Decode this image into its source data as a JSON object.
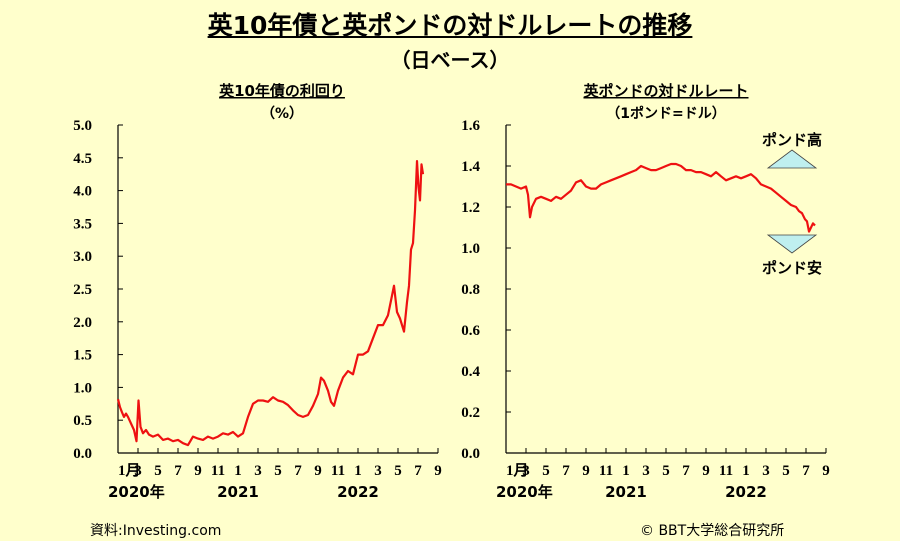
{
  "page": {
    "title": "英10年債と英ポンドの対ドルレートの推移",
    "subtitle": "（日ベース）",
    "source": "資料:Investing.com",
    "copyright": "© BBT大学総合研究所"
  },
  "colors": {
    "line": "#EE1111",
    "background": "#FFFFCC",
    "arrow_fill": "#BFEFEF"
  },
  "chart_data": [
    {
      "type": "line",
      "title": "英10年債の利回り",
      "unit": "（%）",
      "ylim": [
        0,
        5.0
      ],
      "yticks": [
        "0.0",
        "0.5",
        "1.0",
        "1.5",
        "2.0",
        "2.5",
        "3.0",
        "3.5",
        "4.0",
        "4.5",
        "5.0"
      ],
      "xticks": [
        "1月",
        "3",
        "5",
        "7",
        "9",
        "11",
        "1",
        "3",
        "5",
        "7",
        "9",
        "11",
        "1",
        "3",
        "5",
        "7",
        "9"
      ],
      "year_labels": [
        "2020年",
        "2021",
        "2022"
      ],
      "x_unit": "month index from Jan 2020",
      "grid": false,
      "series": [
        {
          "values": [
            [
              0.0,
              0.82
            ],
            [
              0.2,
              0.7
            ],
            [
              0.4,
              0.62
            ],
            [
              0.6,
              0.55
            ],
            [
              0.8,
              0.6
            ],
            [
              1.0,
              0.55
            ],
            [
              1.3,
              0.45
            ],
            [
              1.6,
              0.35
            ],
            [
              1.85,
              0.18
            ],
            [
              2.05,
              0.8
            ],
            [
              2.25,
              0.4
            ],
            [
              2.5,
              0.3
            ],
            [
              2.8,
              0.35
            ],
            [
              3.1,
              0.28
            ],
            [
              3.5,
              0.25
            ],
            [
              4.0,
              0.28
            ],
            [
              4.5,
              0.2
            ],
            [
              5.0,
              0.22
            ],
            [
              5.5,
              0.18
            ],
            [
              6.0,
              0.2
            ],
            [
              6.5,
              0.15
            ],
            [
              7.0,
              0.12
            ],
            [
              7.5,
              0.25
            ],
            [
              8.0,
              0.22
            ],
            [
              8.5,
              0.2
            ],
            [
              9.0,
              0.25
            ],
            [
              9.5,
              0.22
            ],
            [
              10.0,
              0.25
            ],
            [
              10.5,
              0.3
            ],
            [
              11.0,
              0.28
            ],
            [
              11.5,
              0.32
            ],
            [
              12.0,
              0.25
            ],
            [
              12.5,
              0.3
            ],
            [
              13.0,
              0.55
            ],
            [
              13.5,
              0.75
            ],
            [
              14.0,
              0.8
            ],
            [
              14.5,
              0.8
            ],
            [
              15.0,
              0.78
            ],
            [
              15.5,
              0.85
            ],
            [
              16.0,
              0.8
            ],
            [
              16.5,
              0.78
            ],
            [
              17.0,
              0.73
            ],
            [
              17.5,
              0.65
            ],
            [
              18.0,
              0.58
            ],
            [
              18.5,
              0.55
            ],
            [
              19.0,
              0.58
            ],
            [
              19.5,
              0.72
            ],
            [
              20.0,
              0.9
            ],
            [
              20.3,
              1.15
            ],
            [
              20.6,
              1.1
            ],
            [
              21.0,
              0.95
            ],
            [
              21.3,
              0.78
            ],
            [
              21.6,
              0.72
            ],
            [
              22.0,
              0.95
            ],
            [
              22.5,
              1.15
            ],
            [
              23.0,
              1.25
            ],
            [
              23.5,
              1.2
            ],
            [
              24.0,
              1.5
            ],
            [
              24.5,
              1.5
            ],
            [
              25.0,
              1.55
            ],
            [
              25.5,
              1.75
            ],
            [
              26.0,
              1.95
            ],
            [
              26.5,
              1.95
            ],
            [
              27.0,
              2.1
            ],
            [
              27.4,
              2.4
            ],
            [
              27.6,
              2.55
            ],
            [
              27.9,
              2.15
            ],
            [
              28.2,
              2.05
            ],
            [
              28.6,
              1.85
            ],
            [
              28.9,
              2.3
            ],
            [
              29.1,
              2.55
            ],
            [
              29.3,
              3.1
            ],
            [
              29.5,
              3.2
            ],
            [
              29.7,
              3.7
            ],
            [
              29.9,
              4.45
            ],
            [
              30.05,
              4.05
            ],
            [
              30.2,
              3.85
            ],
            [
              30.35,
              4.4
            ],
            [
              30.5,
              4.25
            ]
          ]
        }
      ]
    },
    {
      "type": "line",
      "title": "英ポンドの対ドルレート",
      "unit": "（1ポンド=ドル）",
      "ylim": [
        0,
        1.6
      ],
      "yticks": [
        "0.0",
        "0.2",
        "0.4",
        "0.6",
        "0.8",
        "1.0",
        "1.2",
        "1.4",
        "1.6"
      ],
      "xticks": [
        "1月",
        "3",
        "5",
        "7",
        "9",
        "11",
        "1",
        "3",
        "5",
        "7",
        "9",
        "11",
        "1",
        "3",
        "5",
        "7",
        "9"
      ],
      "year_labels": [
        "2020年",
        "2021",
        "2022"
      ],
      "x_unit": "month index from Jan 2020",
      "grid": false,
      "annotations": {
        "up": "ポンド高",
        "down": "ポンド安"
      },
      "series": [
        {
          "values": [
            [
              0.0,
              1.31
            ],
            [
              0.5,
              1.31
            ],
            [
              1.0,
              1.3
            ],
            [
              1.5,
              1.29
            ],
            [
              2.0,
              1.3
            ],
            [
              2.2,
              1.26
            ],
            [
              2.4,
              1.15
            ],
            [
              2.6,
              1.2
            ],
            [
              3.0,
              1.24
            ],
            [
              3.5,
              1.25
            ],
            [
              4.0,
              1.24
            ],
            [
              4.5,
              1.23
            ],
            [
              5.0,
              1.25
            ],
            [
              5.5,
              1.24
            ],
            [
              6.0,
              1.26
            ],
            [
              6.5,
              1.28
            ],
            [
              7.0,
              1.32
            ],
            [
              7.5,
              1.33
            ],
            [
              8.0,
              1.3
            ],
            [
              8.5,
              1.29
            ],
            [
              9.0,
              1.29
            ],
            [
              9.5,
              1.31
            ],
            [
              10.0,
              1.32
            ],
            [
              10.5,
              1.33
            ],
            [
              11.0,
              1.34
            ],
            [
              11.5,
              1.35
            ],
            [
              12.0,
              1.36
            ],
            [
              12.5,
              1.37
            ],
            [
              13.0,
              1.38
            ],
            [
              13.5,
              1.4
            ],
            [
              14.0,
              1.39
            ],
            [
              14.5,
              1.38
            ],
            [
              15.0,
              1.38
            ],
            [
              15.5,
              1.39
            ],
            [
              16.0,
              1.4
            ],
            [
              16.5,
              1.41
            ],
            [
              17.0,
              1.41
            ],
            [
              17.5,
              1.4
            ],
            [
              18.0,
              1.38
            ],
            [
              18.5,
              1.38
            ],
            [
              19.0,
              1.37
            ],
            [
              19.5,
              1.37
            ],
            [
              20.0,
              1.36
            ],
            [
              20.5,
              1.35
            ],
            [
              21.0,
              1.37
            ],
            [
              21.5,
              1.35
            ],
            [
              22.0,
              1.33
            ],
            [
              22.5,
              1.34
            ],
            [
              23.0,
              1.35
            ],
            [
              23.5,
              1.34
            ],
            [
              24.0,
              1.35
            ],
            [
              24.5,
              1.36
            ],
            [
              25.0,
              1.34
            ],
            [
              25.5,
              1.31
            ],
            [
              26.0,
              1.3
            ],
            [
              26.5,
              1.29
            ],
            [
              27.0,
              1.27
            ],
            [
              27.5,
              1.25
            ],
            [
              28.0,
              1.23
            ],
            [
              28.5,
              1.21
            ],
            [
              29.0,
              1.2
            ],
            [
              29.3,
              1.18
            ],
            [
              29.6,
              1.17
            ],
            [
              29.9,
              1.14
            ],
            [
              30.1,
              1.13
            ],
            [
              30.3,
              1.08
            ],
            [
              30.5,
              1.1
            ],
            [
              30.7,
              1.12
            ],
            [
              30.9,
              1.11
            ]
          ]
        }
      ]
    }
  ]
}
